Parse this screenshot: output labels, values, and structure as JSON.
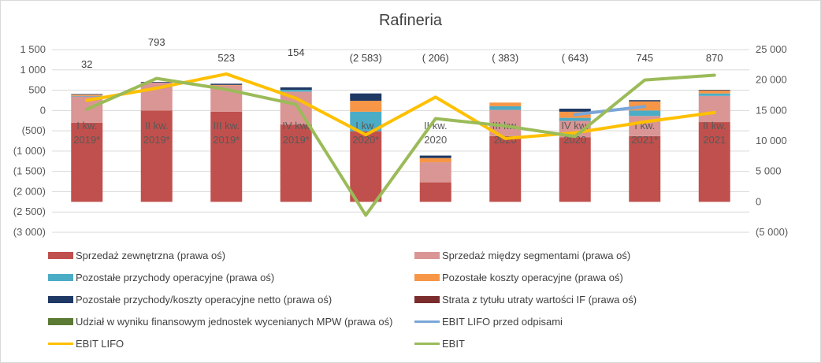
{
  "chart_data": {
    "type": "bar",
    "title": "Rafineria",
    "categories": [
      "I kw.\n2019*",
      "II kw.\n2019*",
      "III kw.\n2019*",
      "IV kw.\n2019*",
      "I kw.\n2020*",
      "II kw.\n2020",
      "III kw.\n2020",
      "IV kw.\n2020",
      "I kw.\n2021*",
      "II kw.\n2021"
    ],
    "left_axis": {
      "min": -3000,
      "max": 1500,
      "step": 500,
      "tick_labels": [
        "(3 000)",
        "(2 500)",
        "(2 000)",
        "(1 500)",
        "(1 000)",
        "(500)",
        "0",
        "500",
        "1 000",
        "1 500"
      ]
    },
    "right_axis": {
      "min": -5000,
      "max": 25000,
      "step": 5000,
      "tick_labels": [
        "(5 000)",
        "0",
        "5 000",
        "10 000",
        "15 000",
        "20 000",
        "25 000"
      ]
    },
    "value_labels": [
      "32",
      "793",
      "523",
      "154",
      "(2 583)",
      "( 206)",
      "( 383)",
      "( 643)",
      "745",
      "870"
    ],
    "stacked_axis": "right",
    "series": [
      {
        "name": "Sprzedaż zewnętrzna (prawa oś)",
        "color": "#c0504d",
        "kind": "bar",
        "values": [
          13000,
          15000,
          14800,
          12700,
          11600,
          3200,
          10800,
          10600,
          10800,
          13100
        ]
      },
      {
        "name": "Sprzedaż między segmentami (prawa oś)",
        "color": "#d99694",
        "kind": "bar",
        "values": [
          4300,
          4600,
          4300,
          5400,
          0,
          3300,
          4300,
          2700,
          3300,
          4300
        ]
      },
      {
        "name": "Pozostałe przychody operacyjne (prawa oś)",
        "color": "#4bacc6",
        "kind": "bar",
        "values": [
          100,
          0,
          0,
          300,
          3200,
          0,
          600,
          500,
          900,
          400
        ]
      },
      {
        "name": "Pozostałe koszty operacyjne (prawa oś)",
        "color": "#f79646",
        "kind": "bar",
        "values": [
          200,
          0,
          100,
          0,
          1800,
          700,
          600,
          1000,
          1500,
          500
        ]
      },
      {
        "name": "Pozostałe przychody/koszty operacyjne netto (prawa oś)",
        "color": "#1f3864",
        "kind": "bar",
        "values": [
          100,
          100,
          200,
          400,
          1200,
          400,
          0,
          500,
          200,
          100
        ]
      },
      {
        "name": "Strata z tytułu utraty wartości IF (prawa oś)",
        "color": "#7b2c2c",
        "kind": "bar",
        "values": [
          0,
          0,
          0,
          0,
          0,
          0,
          0,
          0,
          0,
          0
        ]
      },
      {
        "name": "Udział w wyniku finansowym jednostek wycenianych MPW (prawa oś)",
        "color": "#5b7a34",
        "kind": "bar",
        "values": [
          0,
          0,
          0,
          0,
          0,
          0,
          0,
          0,
          0,
          0
        ]
      },
      {
        "name": "EBIT LIFO przed odpisami",
        "color": "#7aa6d8",
        "kind": "line",
        "axis": "left",
        "values": [
          null,
          null,
          null,
          null,
          null,
          null,
          null,
          -100,
          100,
          null
        ]
      },
      {
        "name": "EBIT LIFO",
        "color": "#ffc000",
        "kind": "line",
        "axis": "left",
        "values": [
          250,
          550,
          900,
          300,
          -600,
          330,
          -690,
          -550,
          -280,
          -50
        ]
      },
      {
        "name": "EBIT",
        "color": "#9bbb59",
        "kind": "line",
        "axis": "left",
        "values": [
          30,
          790,
          520,
          150,
          -2580,
          -200,
          -380,
          -640,
          750,
          870
        ]
      }
    ]
  }
}
